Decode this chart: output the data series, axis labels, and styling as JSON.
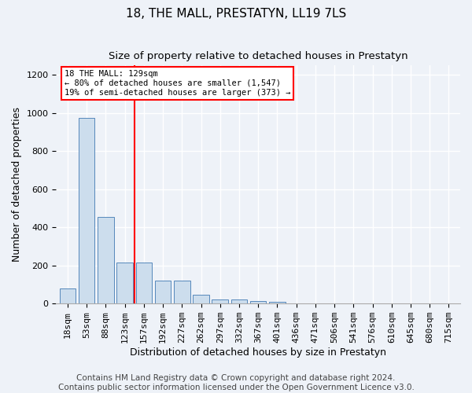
{
  "title": "18, THE MALL, PRESTATYN, LL19 7LS",
  "subtitle": "Size of property relative to detached houses in Prestatyn",
  "xlabel": "Distribution of detached houses by size in Prestatyn",
  "ylabel": "Number of detached properties",
  "bar_labels": [
    "18sqm",
    "53sqm",
    "88sqm",
    "123sqm",
    "157sqm",
    "192sqm",
    "227sqm",
    "262sqm",
    "297sqm",
    "332sqm",
    "367sqm",
    "401sqm",
    "436sqm",
    "471sqm",
    "506sqm",
    "541sqm",
    "576sqm",
    "610sqm",
    "645sqm",
    "680sqm",
    "715sqm"
  ],
  "bar_values": [
    80,
    975,
    455,
    215,
    215,
    120,
    120,
    48,
    22,
    20,
    15,
    10,
    0,
    0,
    0,
    0,
    0,
    0,
    0,
    0,
    0
  ],
  "bar_color": "#ccdded",
  "bar_edgecolor": "#5588bb",
  "background_color": "#eef2f8",
  "grid_color": "#ffffff",
  "vline_x_index": 3,
  "vline_color": "red",
  "annotation_text": "18 THE MALL: 129sqm\n← 80% of detached houses are smaller (1,547)\n19% of semi-detached houses are larger (373) →",
  "annotation_box_color": "white",
  "annotation_box_edgecolor": "red",
  "ylim": [
    0,
    1250
  ],
  "yticks": [
    0,
    200,
    400,
    600,
    800,
    1000,
    1200
  ],
  "footer_text": "Contains HM Land Registry data © Crown copyright and database right 2024.\nContains public sector information licensed under the Open Government Licence v3.0.",
  "title_fontsize": 11,
  "subtitle_fontsize": 9.5,
  "xlabel_fontsize": 9,
  "ylabel_fontsize": 9,
  "footer_fontsize": 7.5,
  "tick_fontsize": 8,
  "bar_width": 0.85
}
